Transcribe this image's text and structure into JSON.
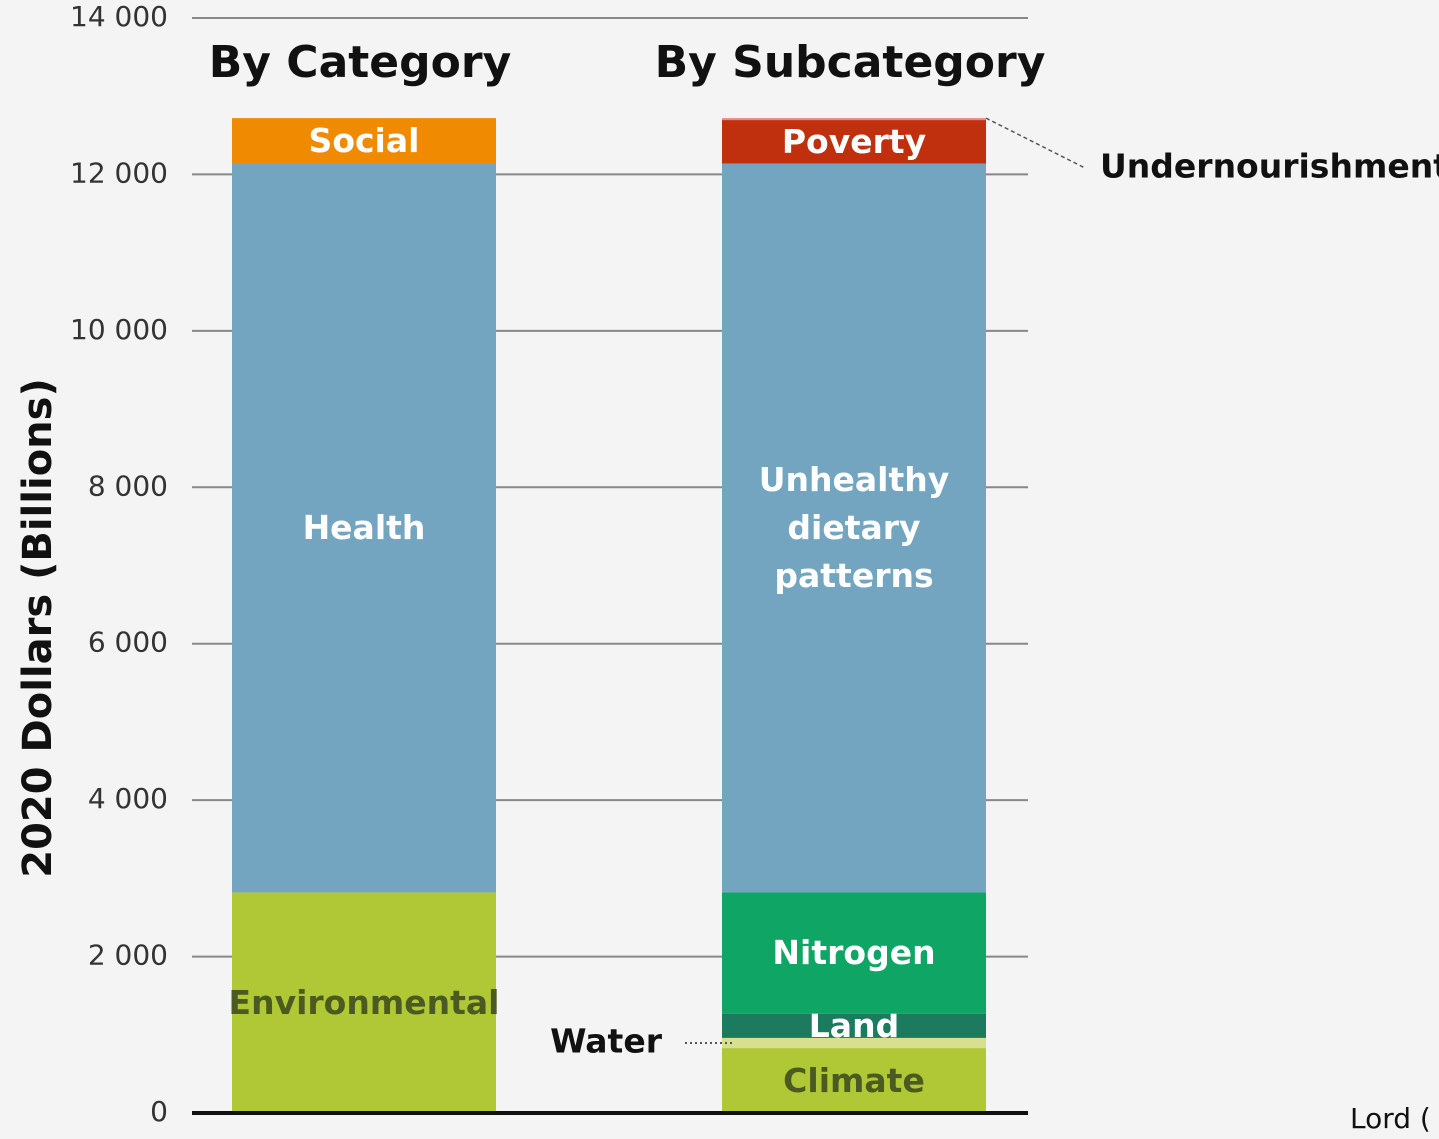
{
  "chart_data": {
    "type": "bar",
    "stacked": true,
    "ylabel": "2020 Dollars (Billions)",
    "categories": [
      "By Category",
      "By Subcategory"
    ],
    "series": [
      {
        "name": "Environmental",
        "color": "#b0c835",
        "values": [
          2820,
          null
        ]
      },
      {
        "name": "Health",
        "color": "#73a5c0",
        "values": [
          9320,
          null
        ]
      },
      {
        "name": "Social",
        "color": "#f08a00",
        "values": [
          580,
          null
        ]
      },
      {
        "name": "Climate",
        "color": "#b0c835",
        "values": [
          null,
          830
        ]
      },
      {
        "name": "Water",
        "color": "#d8e08f",
        "values": [
          null,
          130
        ]
      },
      {
        "name": "Land",
        "color": "#1c7a5e",
        "values": [
          null,
          310
        ]
      },
      {
        "name": "Nitrogen",
        "color": "#0fa565",
        "values": [
          null,
          1550
        ]
      },
      {
        "name": "Unhealthy dietary patterns",
        "color": "#73a5c0",
        "values": [
          null,
          9320
        ]
      },
      {
        "name": "Poverty",
        "color": "#c0300f",
        "values": [
          null,
          555
        ]
      },
      {
        "name": "Undernourishment",
        "color": "#e88a80",
        "values": [
          null,
          25
        ]
      }
    ],
    "ylim": [
      0,
      14000
    ],
    "yticks": [
      0,
      {
        "value": 2000,
        "label": "2 000"
      },
      {
        "value": 4000,
        "label": "4 000"
      },
      {
        "value": 6000,
        "label": "6 000"
      },
      {
        "value": 8000,
        "label": "8 000"
      },
      {
        "value": 10000,
        "label": "10 000"
      },
      {
        "value": 12000,
        "label": "12 000"
      },
      {
        "value": 14000,
        "label": "14 000"
      }
    ],
    "grid": true,
    "source": "Lord ("
  }
}
